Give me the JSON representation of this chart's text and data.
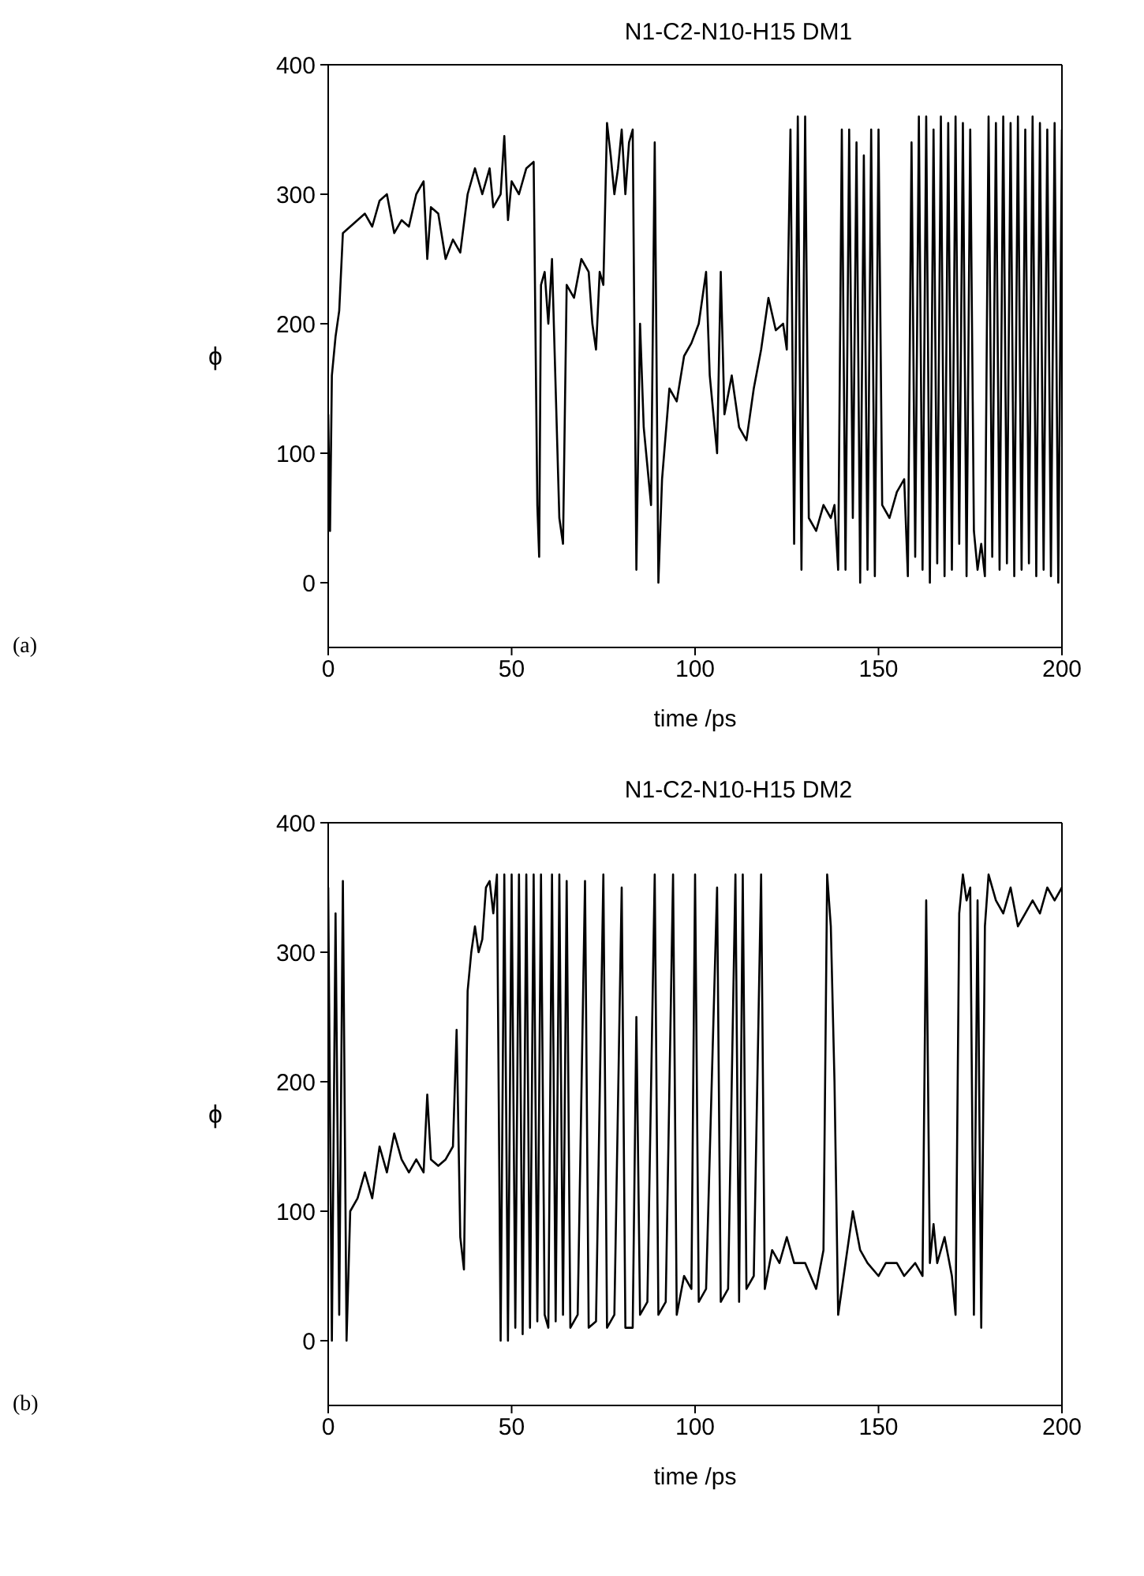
{
  "chart_data": [
    {
      "type": "line",
      "title": "N1-C2-N10-H15  DM1",
      "xlabel": "time /ps",
      "ylabel": "ϕ",
      "annotations": [
        "(a)"
      ],
      "xlim": [
        0,
        200
      ],
      "ylim": [
        -50,
        400
      ],
      "xticks": [
        0,
        50,
        100,
        150,
        200
      ],
      "yticks": [
        0,
        100,
        200,
        300,
        400
      ],
      "marker": "none",
      "line_style": "solid",
      "series": [
        {
          "color": "#000000",
          "x": [
            0,
            0.5,
            1,
            2,
            3,
            4,
            6,
            8,
            10,
            12,
            14,
            16,
            18,
            20,
            22,
            24,
            26,
            27,
            28,
            30,
            32,
            34,
            36,
            38,
            40,
            42,
            44,
            45,
            47,
            48,
            49,
            50,
            52,
            54,
            56,
            57,
            57.5,
            58,
            59,
            60,
            61,
            62,
            63,
            64,
            65,
            67,
            69,
            71,
            72,
            73,
            74,
            75,
            76,
            77,
            78,
            79,
            80,
            81,
            82,
            83,
            84,
            85,
            86,
            88,
            89,
            90,
            91,
            93,
            95,
            97,
            99,
            101,
            103,
            104,
            106,
            107,
            108,
            110,
            112,
            114,
            116,
            118,
            120,
            122,
            124,
            125,
            126,
            127,
            128,
            129,
            130,
            131,
            133,
            135,
            137,
            138,
            139,
            140,
            141,
            142,
            143,
            144,
            145,
            146,
            147,
            148,
            149,
            150,
            151,
            153,
            155,
            157,
            158,
            159,
            160,
            161,
            162,
            163,
            164,
            165,
            166,
            167,
            168,
            169,
            170,
            171,
            172,
            173,
            174,
            175,
            176,
            177,
            178,
            179,
            180,
            181,
            182,
            183,
            184,
            185,
            186,
            187,
            188,
            189,
            190,
            191,
            192,
            193,
            194,
            195,
            196,
            197,
            198,
            199,
            200
          ],
          "values": [
            130,
            40,
            160,
            190,
            210,
            270,
            275,
            280,
            285,
            275,
            295,
            300,
            270,
            280,
            275,
            300,
            310,
            250,
            290,
            285,
            250,
            265,
            255,
            300,
            320,
            300,
            320,
            290,
            300,
            345,
            280,
            310,
            300,
            320,
            325,
            60,
            20,
            230,
            240,
            200,
            250,
            150,
            50,
            30,
            230,
            220,
            250,
            240,
            200,
            180,
            240,
            230,
            355,
            330,
            300,
            320,
            350,
            300,
            340,
            350,
            10,
            200,
            120,
            60,
            340,
            0,
            80,
            150,
            140,
            175,
            185,
            200,
            240,
            160,
            100,
            240,
            130,
            160,
            120,
            110,
            150,
            180,
            220,
            195,
            200,
            180,
            350,
            30,
            360,
            10,
            360,
            50,
            40,
            60,
            50,
            60,
            10,
            350,
            10,
            350,
            50,
            340,
            0,
            330,
            10,
            350,
            5,
            350,
            60,
            50,
            70,
            80,
            5,
            340,
            20,
            360,
            10,
            360,
            0,
            350,
            15,
            360,
            5,
            355,
            10,
            360,
            30,
            355,
            5,
            350,
            40,
            10,
            30,
            5,
            360,
            20,
            355,
            10,
            360,
            15,
            355,
            5,
            360,
            10,
            350,
            15,
            360,
            5,
            355,
            10,
            350,
            5,
            355,
            0,
            350
          ]
        }
      ]
    },
    {
      "type": "line",
      "title": "N1-C2-N10-H15  DM2",
      "xlabel": "time /ps",
      "ylabel": "ϕ",
      "annotations": [
        "(b)"
      ],
      "xlim": [
        0,
        200
      ],
      "ylim": [
        -50,
        400
      ],
      "xticks": [
        0,
        50,
        100,
        150,
        200
      ],
      "yticks": [
        0,
        100,
        200,
        300,
        400
      ],
      "marker": "none",
      "line_style": "solid",
      "series": [
        {
          "color": "#000000",
          "x": [
            0,
            1,
            2,
            3,
            4,
            5,
            6,
            8,
            10,
            12,
            14,
            16,
            18,
            20,
            22,
            24,
            26,
            27,
            28,
            30,
            32,
            34,
            35,
            36,
            37,
            38,
            39,
            40,
            41,
            42,
            43,
            44,
            45,
            46,
            47,
            48,
            49,
            50,
            51,
            52,
            53,
            54,
            55,
            56,
            57,
            58,
            59,
            60,
            61,
            62,
            63,
            64,
            65,
            66,
            68,
            70,
            71,
            73,
            75,
            76,
            78,
            80,
            81,
            83,
            84,
            85,
            87,
            89,
            90,
            92,
            94,
            95,
            97,
            99,
            100,
            101,
            103,
            106,
            107,
            109,
            111,
            112,
            113,
            114,
            116,
            118,
            119,
            121,
            123,
            125,
            127,
            130,
            133,
            135,
            136,
            137,
            138,
            139,
            141,
            143,
            145,
            147,
            150,
            152,
            155,
            157,
            160,
            162,
            163,
            164,
            165,
            166,
            168,
            170,
            171,
            172,
            173,
            174,
            175,
            176,
            177,
            178,
            179,
            180,
            182,
            184,
            186,
            188,
            190,
            192,
            194,
            196,
            198,
            200
          ],
          "values": [
            350,
            0,
            330,
            20,
            355,
            0,
            100,
            110,
            130,
            110,
            150,
            130,
            160,
            140,
            130,
            140,
            130,
            190,
            140,
            135,
            140,
            150,
            240,
            80,
            55,
            270,
            300,
            320,
            300,
            310,
            350,
            355,
            330,
            360,
            0,
            360,
            0,
            360,
            10,
            360,
            5,
            360,
            10,
            360,
            15,
            360,
            20,
            10,
            360,
            15,
            360,
            20,
            355,
            10,
            20,
            355,
            10,
            15,
            360,
            10,
            20,
            350,
            10,
            10,
            250,
            20,
            30,
            360,
            20,
            30,
            360,
            20,
            50,
            40,
            360,
            30,
            40,
            350,
            30,
            40,
            360,
            30,
            360,
            40,
            50,
            360,
            40,
            70,
            60,
            80,
            60,
            60,
            40,
            70,
            360,
            320,
            200,
            20,
            60,
            100,
            70,
            60,
            50,
            60,
            60,
            50,
            60,
            50,
            340,
            60,
            90,
            60,
            80,
            50,
            20,
            330,
            360,
            340,
            350,
            20,
            340,
            10,
            320,
            360,
            340,
            330,
            350,
            320,
            330,
            340,
            330,
            350,
            340,
            350
          ]
        }
      ]
    }
  ]
}
